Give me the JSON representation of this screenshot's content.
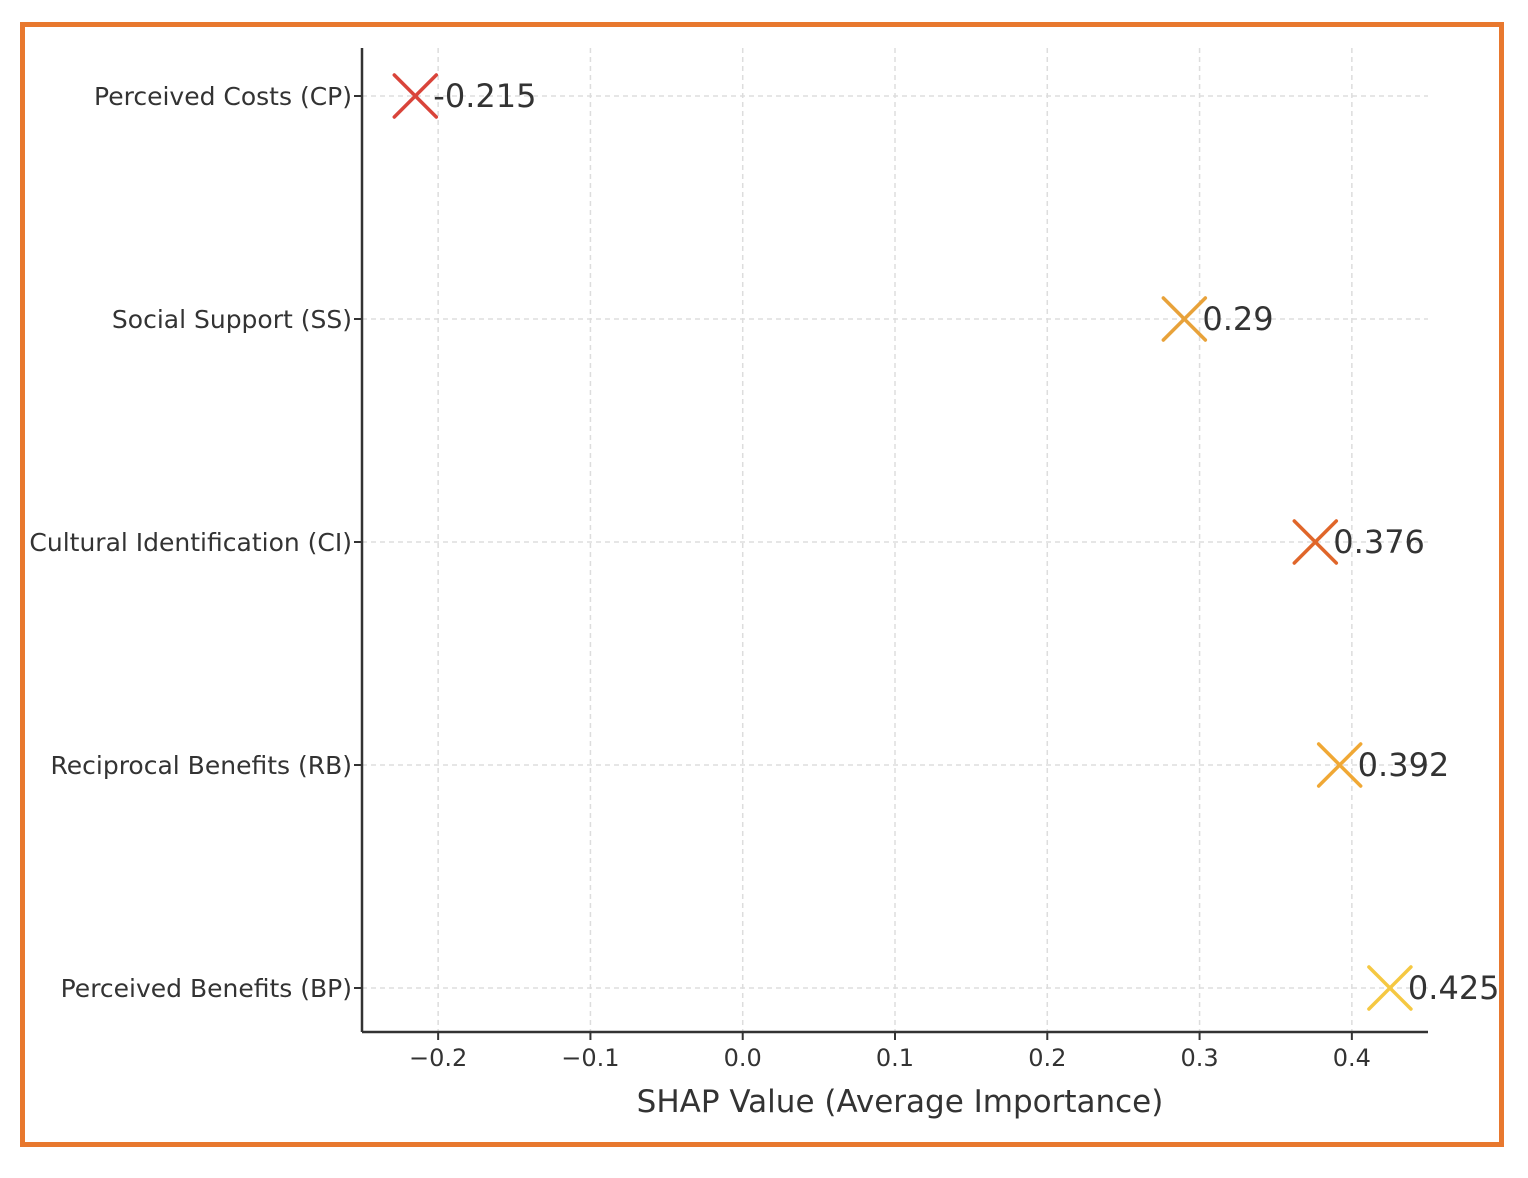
{
  "chart_data": {
    "type": "scatter",
    "title": "",
    "xlabel": "SHAP Value (Average Importance)",
    "ylabel": "",
    "xlim": [
      -0.25,
      0.45
    ],
    "xticks": [
      "-0.2",
      "-0.1",
      "0.0",
      "0.1",
      "0.2",
      "0.3",
      "0.4"
    ],
    "xtick_values": [
      -0.2,
      -0.1,
      0.0,
      0.1,
      0.2,
      0.3,
      0.4
    ],
    "grid": true,
    "marker": "x",
    "categories": [
      "Perceived Costs (CP)",
      "Social Support (SS)",
      "Cultural Identification (CI)",
      "Reciprocal Benefits (RB)",
      "Perceived Benefits (BP)"
    ],
    "values": [
      -0.215,
      0.29,
      0.376,
      0.392,
      0.425
    ],
    "value_labels": [
      "-0.215",
      "0.29",
      "0.376",
      "0.392",
      "0.425"
    ],
    "colors": [
      "#D9443A",
      "#E8A23A",
      "#E0662A",
      "#F0A835",
      "#F5C842"
    ]
  },
  "colors": {
    "border": "#E8782E",
    "grid": "#dddddd",
    "axis": "#333333"
  }
}
